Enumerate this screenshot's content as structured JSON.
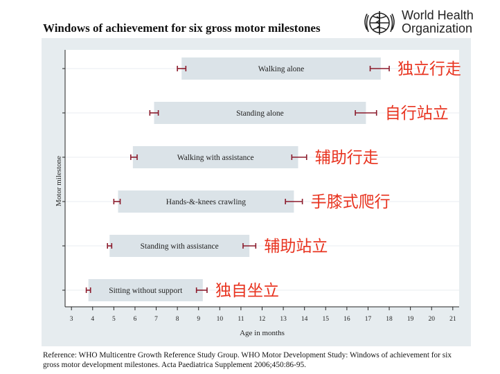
{
  "title": "Windows of achievement for six gross motor milestones",
  "logo": {
    "line1": "World Health",
    "line2": "Organization"
  },
  "reference": "Reference: WHO Multicentre Growth Reference Study Group. WHO Motor Development Study: Windows of achievement for six gross motor development milestones. Acta Paediatrica Supplement 2006;450:86-95.",
  "colors": {
    "plot_bg": "#e6ecef",
    "bar": "#dbe3e8",
    "whisker": "#8b1a2b",
    "chinese": "#e8331f"
  },
  "chart_data": {
    "type": "bar",
    "orientation": "horizontal",
    "xlabel": "Age in months",
    "ylabel": "Motor milestone",
    "xlim": [
      2.7,
      21.3
    ],
    "xticks": [
      3,
      4,
      5,
      6,
      7,
      8,
      9,
      10,
      11,
      12,
      13,
      14,
      15,
      16,
      17,
      18,
      19,
      20,
      21
    ],
    "grid": true,
    "series": [
      {
        "label": "Walking alone",
        "chinese": "独立行走",
        "start": 8.2,
        "end": 17.6,
        "p1": [
          8.0,
          8.4
        ],
        "p99": [
          17.1,
          18.0
        ]
      },
      {
        "label": "Standing alone",
        "chinese": "自行站立",
        "start": 6.9,
        "end": 16.9,
        "p1": [
          6.7,
          7.1
        ],
        "p99": [
          16.4,
          17.4
        ]
      },
      {
        "label": "Walking with assistance",
        "chinese": "辅助行走",
        "start": 5.9,
        "end": 13.7,
        "p1": [
          5.8,
          6.1
        ],
        "p99": [
          13.4,
          14.1
        ]
      },
      {
        "label": "Hands-&-knees crawling",
        "chinese": "手膝式爬行",
        "start": 5.2,
        "end": 13.5,
        "p1": [
          5.0,
          5.3
        ],
        "p99": [
          13.1,
          13.9
        ]
      },
      {
        "label": "Standing with assistance",
        "chinese": "辅助站立",
        "start": 4.8,
        "end": 11.4,
        "p1": [
          4.7,
          4.9
        ],
        "p99": [
          11.1,
          11.7
        ]
      },
      {
        "label": "Sitting without support",
        "chinese": "独自坐立",
        "start": 3.8,
        "end": 9.2,
        "p1": [
          3.7,
          3.9
        ],
        "p99": [
          8.9,
          9.4
        ]
      }
    ]
  }
}
